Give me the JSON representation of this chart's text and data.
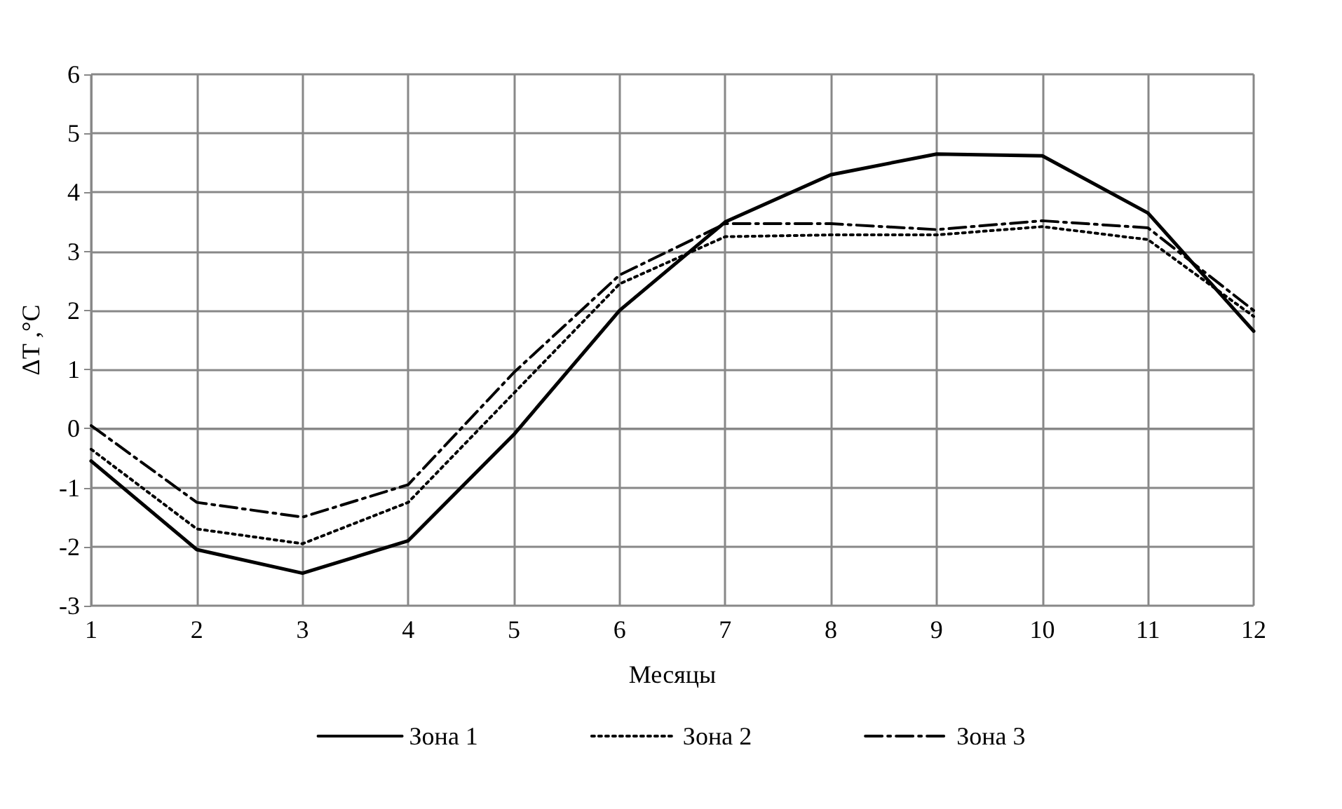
{
  "chart_data": {
    "type": "line",
    "xlabel": "Месяцы",
    "ylabel": "ΔT ,°C",
    "categories": [
      "1",
      "2",
      "3",
      "4",
      "5",
      "6",
      "7",
      "8",
      "9",
      "10",
      "11",
      "12"
    ],
    "series": [
      {
        "name": "Зона 1",
        "color": "#000000",
        "line_style": "solid",
        "values": [
          -0.55,
          -2.05,
          -2.45,
          -1.9,
          -0.1,
          2.0,
          3.5,
          4.3,
          4.65,
          4.62,
          3.65,
          1.65
        ]
      },
      {
        "name": "Зона 2",
        "color": "#000000",
        "line_style": "dotted",
        "values": [
          -0.35,
          -1.7,
          -1.95,
          -1.25,
          0.6,
          2.45,
          3.25,
          3.28,
          3.28,
          3.42,
          3.2,
          1.9
        ]
      },
      {
        "name": "Зона 3",
        "color": "#000000",
        "line_style": "dashed",
        "values": [
          0.05,
          -1.25,
          -1.5,
          -0.95,
          0.95,
          2.6,
          3.47,
          3.47,
          3.37,
          3.52,
          3.4,
          2.0
        ]
      }
    ],
    "ylim": [
      -3,
      6
    ],
    "yticks": [
      -3,
      -2,
      -1,
      0,
      1,
      2,
      3,
      4,
      5,
      6
    ],
    "grid": true,
    "legend": "bottom",
    "marker": "none"
  }
}
